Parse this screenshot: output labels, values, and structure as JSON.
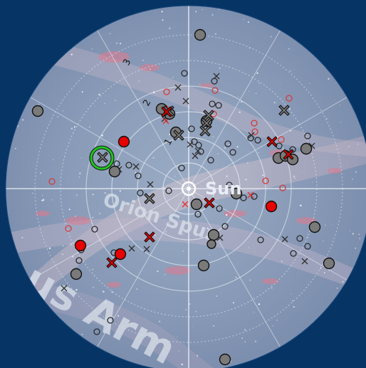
{
  "map": {
    "sun_label": "Sun",
    "spur_label": "Orion Spur",
    "arm_label": "us Arm",
    "ring_numbers": [
      "1",
      "2",
      "3"
    ],
    "colors": {
      "background": "#063565",
      "sky": "#8496b2",
      "grid": "#dde4ee",
      "confirmed": "#e00000",
      "unconfirmed": "#7a7a7a",
      "highlight": "#22c51f"
    },
    "selected_marker": "green-ring-highlight"
  }
}
